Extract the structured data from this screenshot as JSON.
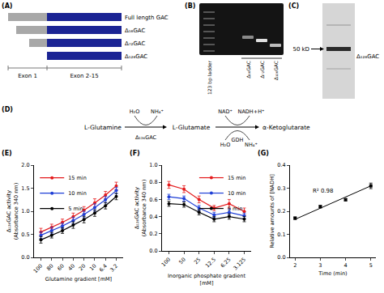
{
  "panel_A": {
    "letter": "(A)",
    "constructs": [
      "Full length GAC",
      "Δ₁₆GAC",
      "Δ₇₂GAC",
      "Δ₁₂₆GAC"
    ],
    "regions": [
      "Exon 1",
      "Exon 2-15"
    ]
  },
  "panel_B": {
    "letter": "(B)",
    "lanes": [
      "123 bp ladder",
      "Δ₁₆GAC",
      "Δ₇₂GAC",
      "Δ₁₂₆GAC"
    ]
  },
  "panel_C": {
    "letter": "(C)",
    "marker_label": "50 kD",
    "band_label": "Δ₁₂₆GAC"
  },
  "panel_D": {
    "letter": "(D)",
    "compounds": [
      "L-Glutamine",
      "L-Glutamate",
      "α-Ketoglutarate"
    ],
    "steps": [
      {
        "enzyme": "Δ₁₂₆GAC",
        "above": [
          "H₂O",
          "NH₄⁺"
        ]
      },
      {
        "enzyme": "GDH",
        "above": [
          "NAD⁺",
          "NADH+H⁺"
        ],
        "below": [
          "H₂O",
          "NH₄⁺"
        ]
      }
    ]
  },
  "chart_data": [
    {
      "panel_label": "(E)",
      "type": "line",
      "x_label": "Glutamine gradient [mM]",
      "y_label": "Δ₁₂₆GAC activity (Absorbance 340 nm)",
      "categories": [
        "100",
        "80",
        "60",
        "40",
        "20",
        "10",
        "6.4",
        "3.2"
      ],
      "series": [
        {
          "name": "15 min",
          "color": "#e41a1c",
          "values": [
            0.55,
            0.65,
            0.76,
            0.88,
            1.02,
            1.18,
            1.35,
            1.55
          ],
          "errors": [
            0.08,
            0.07,
            0.07,
            0.08,
            0.08,
            0.09,
            0.08,
            0.08
          ]
        },
        {
          "name": "10 min",
          "color": "#1f3fd6",
          "values": [
            0.48,
            0.58,
            0.68,
            0.8,
            0.93,
            1.08,
            1.25,
            1.45
          ],
          "errors": [
            0.07,
            0.07,
            0.06,
            0.07,
            0.07,
            0.08,
            0.07,
            0.07
          ]
        },
        {
          "name": "5 min",
          "color": "#000000",
          "values": [
            0.38,
            0.48,
            0.58,
            0.7,
            0.82,
            0.96,
            1.12,
            1.32
          ],
          "errors": [
            0.07,
            0.06,
            0.06,
            0.07,
            0.07,
            0.07,
            0.07,
            0.07
          ]
        }
      ],
      "ylim": [
        0,
        2
      ],
      "yticks": [
        {
          "value": 0,
          "label": "0.0"
        },
        0.5,
        {
          "value": 1,
          "label": "1.0"
        },
        1.5,
        {
          "value": 2,
          "label": "2.0"
        }
      ],
      "marker": "circle",
      "grid": false,
      "legend": "upper left"
    },
    {
      "panel_label": "(F)",
      "type": "line",
      "x_label": "Inorganic phosphate gradient [mM]",
      "y_label": "Δ₁₂₆GAC activity (Absorbance 340 nm)",
      "categories": [
        "100",
        "50",
        "25",
        "12.5",
        "6.25",
        "3.125"
      ],
      "series": [
        {
          "name": "15 min",
          "color": "#e41a1c",
          "values": [
            0.77,
            0.72,
            0.6,
            0.5,
            0.55,
            0.46
          ],
          "errors": [
            0.04,
            0.04,
            0.04,
            0.03,
            0.05,
            0.04
          ]
        },
        {
          "name": "10 min",
          "color": "#1f3fd6",
          "values": [
            0.63,
            0.61,
            0.5,
            0.42,
            0.45,
            0.41
          ],
          "errors": [
            0.03,
            0.03,
            0.03,
            0.03,
            0.04,
            0.03
          ]
        },
        {
          "name": "5 min",
          "color": "#000000",
          "values": [
            0.55,
            0.54,
            0.45,
            0.37,
            0.4,
            0.37
          ],
          "errors": [
            0.03,
            0.03,
            0.03,
            0.03,
            0.03,
            0.03
          ]
        }
      ],
      "ylim": [
        0,
        1
      ],
      "yticks": [
        {
          "value": 0,
          "label": "0.0"
        },
        0.2,
        0.4,
        0.6,
        0.8,
        {
          "value": 1,
          "label": "1.0"
        }
      ],
      "marker": "circle",
      "grid": false,
      "legend": "upper right"
    },
    {
      "panel_label": "(G)",
      "type": "scatter",
      "x_label": "Time (min)",
      "y_label": "Relative amounts of [NADH]",
      "x": [
        2,
        3,
        4,
        5
      ],
      "series": [
        {
          "color": "#000000",
          "values": [
            0.17,
            0.22,
            0.25,
            0.31
          ],
          "errors": [
            0.005,
            0.005,
            0.005,
            0.012
          ]
        }
      ],
      "trendline": {
        "color": "#000000",
        "x": [
          2,
          5
        ],
        "values": [
          0.165,
          0.31
        ]
      },
      "annotations": [
        {
          "text": "R² 0.98"
        }
      ],
      "xlim": [
        1.8,
        5.2
      ],
      "xticks": [
        2,
        3,
        4,
        5
      ],
      "ylim": [
        0,
        0.4
      ],
      "yticks": [
        {
          "value": 0,
          "label": "0.0"
        },
        0.1,
        0.2,
        0.3,
        0.4
      ],
      "marker": "square",
      "grid": false
    }
  ]
}
